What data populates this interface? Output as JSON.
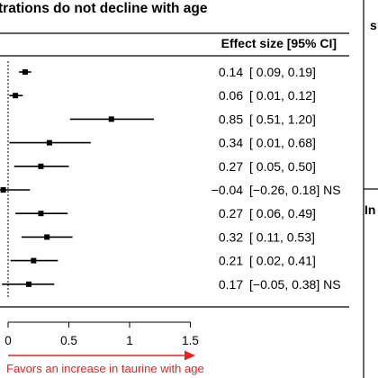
{
  "chart_data": {
    "type": "forest",
    "title": "trations do not decline with age",
    "column_header": "Effect size [95% CI]",
    "xlim": [
      -0.05,
      1.5
    ],
    "x_ticks": [
      {
        "value": 0,
        "label": "0"
      },
      {
        "value": 0.5,
        "label": "0.5"
      },
      {
        "value": 1,
        "label": "1"
      },
      {
        "value": 1.5,
        "label": "1.5"
      }
    ],
    "rows": [
      {
        "estimate": 0.14,
        "lower": 0.09,
        "upper": 0.19,
        "label": "0.14 [ 0.09, 0.19]"
      },
      {
        "estimate": 0.06,
        "lower": 0.01,
        "upper": 0.12,
        "label": "0.06 [ 0.01, 0.12]"
      },
      {
        "estimate": 0.85,
        "lower": 0.51,
        "upper": 1.2,
        "label": "0.85 [ 0.51, 1.20]"
      },
      {
        "estimate": 0.34,
        "lower": 0.01,
        "upper": 0.68,
        "label": "0.34 [ 0.01, 0.68]"
      },
      {
        "estimate": 0.27,
        "lower": 0.05,
        "upper": 0.5,
        "label": "0.27 [ 0.05, 0.50]"
      },
      {
        "estimate": -0.04,
        "lower": -0.26,
        "upper": 0.18,
        "label": "−0.04 [−0.26, 0.18] NS"
      },
      {
        "estimate": 0.27,
        "lower": 0.06,
        "upper": 0.49,
        "label": "0.27 [ 0.06, 0.49]"
      },
      {
        "estimate": 0.32,
        "lower": 0.11,
        "upper": 0.53,
        "label": "0.32 [ 0.11, 0.53]"
      },
      {
        "estimate": 0.21,
        "lower": 0.02,
        "upper": 0.41,
        "label": "0.21 [ 0.02, 0.41]"
      },
      {
        "estimate": 0.17,
        "lower": -0.05,
        "upper": 0.38,
        "label": "0.17 [−0.05, 0.38] NS"
      }
    ],
    "annotation": "Favors an increase in taurine with age",
    "annotation_color": "#e8231f",
    "side_panel": {
      "top_label": "s",
      "bottom_label": "In"
    }
  }
}
